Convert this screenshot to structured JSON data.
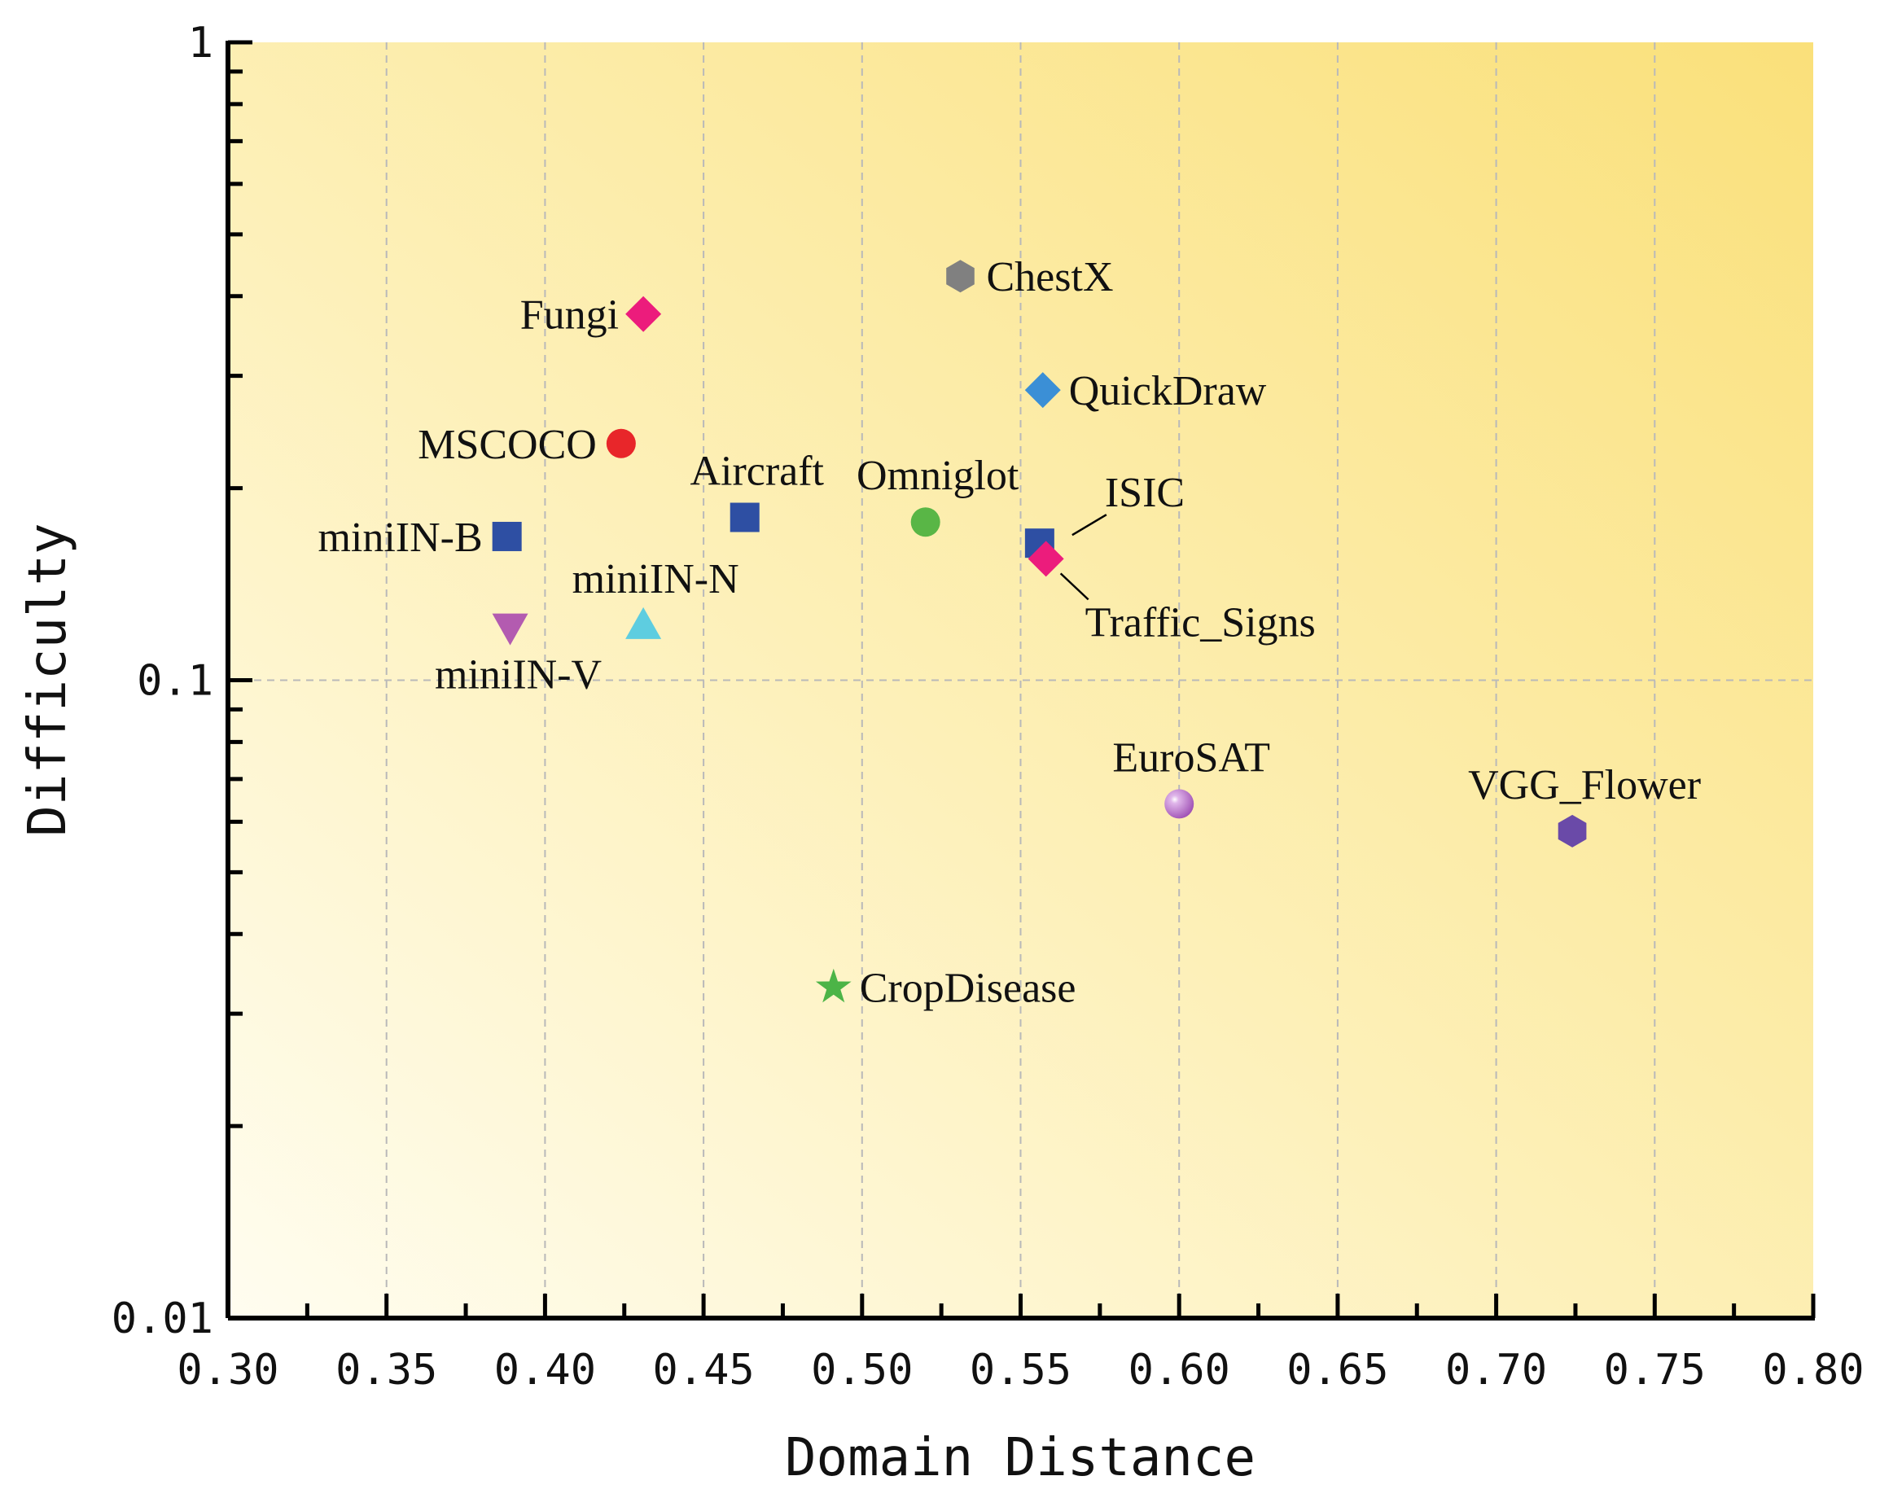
{
  "chart_data": {
    "type": "scatter",
    "title": "",
    "xlabel": "Domain Distance",
    "ylabel": "Difficulty",
    "xlim": [
      0.3,
      0.8
    ],
    "ylim": [
      0.01,
      1
    ],
    "yscale": "log",
    "grid": true,
    "x_ticks": [
      "0.30",
      "0.35",
      "0.40",
      "0.45",
      "0.50",
      "0.55",
      "0.60",
      "0.65",
      "0.70",
      "0.75",
      "0.80"
    ],
    "x_tick_values": [
      0.3,
      0.35,
      0.4,
      0.45,
      0.5,
      0.55,
      0.6,
      0.65,
      0.7,
      0.75,
      0.8
    ],
    "y_ticks": [
      "0.01",
      "0.1",
      "1"
    ],
    "y_tick_values": [
      0.01,
      0.1,
      1
    ],
    "colors": {
      "bg_light": "#fffbe6",
      "bg_dark": "#fbe07c",
      "grid": "#b9b9b9",
      "axis": "#000000"
    },
    "points": [
      {
        "name": "ChestX",
        "x": 0.531,
        "y": 0.43,
        "marker": "hexagon",
        "color": "#808080",
        "label_anchor": "right"
      },
      {
        "name": "Fungi",
        "x": 0.431,
        "y": 0.375,
        "marker": "diamond",
        "color": "#ec1c7c",
        "label_anchor": "left"
      },
      {
        "name": "QuickDraw",
        "x": 0.557,
        "y": 0.285,
        "marker": "diamond",
        "color": "#3b8fd6",
        "label_anchor": "right"
      },
      {
        "name": "MSCOCO",
        "x": 0.424,
        "y": 0.235,
        "marker": "circle",
        "color": "#e8262a",
        "label_anchor": "left"
      },
      {
        "name": "Aircraft",
        "x": 0.463,
        "y": 0.18,
        "marker": "square",
        "color": "#2e4fa3",
        "label_anchor": "above"
      },
      {
        "name": "Omniglot",
        "x": 0.52,
        "y": 0.177,
        "marker": "circle",
        "color": "#59b646",
        "label_anchor": "above"
      },
      {
        "name": "miniIN-B",
        "x": 0.388,
        "y": 0.168,
        "marker": "square",
        "color": "#2e4fa3",
        "label_anchor": "left"
      },
      {
        "name": "ISIC",
        "x": 0.556,
        "y": 0.164,
        "marker": "square",
        "color": "#2e4fa3",
        "label_anchor": "upper-right"
      },
      {
        "name": "Traffic_Signs",
        "x": 0.558,
        "y": 0.155,
        "marker": "diamond",
        "color": "#ec1c7c",
        "label_anchor": "lower-right"
      },
      {
        "name": "miniIN-N",
        "x": 0.431,
        "y": 0.122,
        "marker": "triangle-up",
        "color": "#5ecde0",
        "label_anchor": "above"
      },
      {
        "name": "miniIN-V",
        "x": 0.389,
        "y": 0.121,
        "marker": "triangle-down",
        "color": "#b35bb0",
        "label_anchor": "below"
      },
      {
        "name": "EuroSAT",
        "x": 0.6,
        "y": 0.064,
        "marker": "sphere",
        "color": "#a050b4",
        "label_anchor": "above"
      },
      {
        "name": "VGG_Flower",
        "x": 0.724,
        "y": 0.058,
        "marker": "hexagon",
        "color": "#6a4aa8",
        "label_anchor": "above"
      },
      {
        "name": "CropDisease",
        "x": 0.491,
        "y": 0.033,
        "marker": "star",
        "color": "#4cb447",
        "label_anchor": "right"
      }
    ]
  }
}
